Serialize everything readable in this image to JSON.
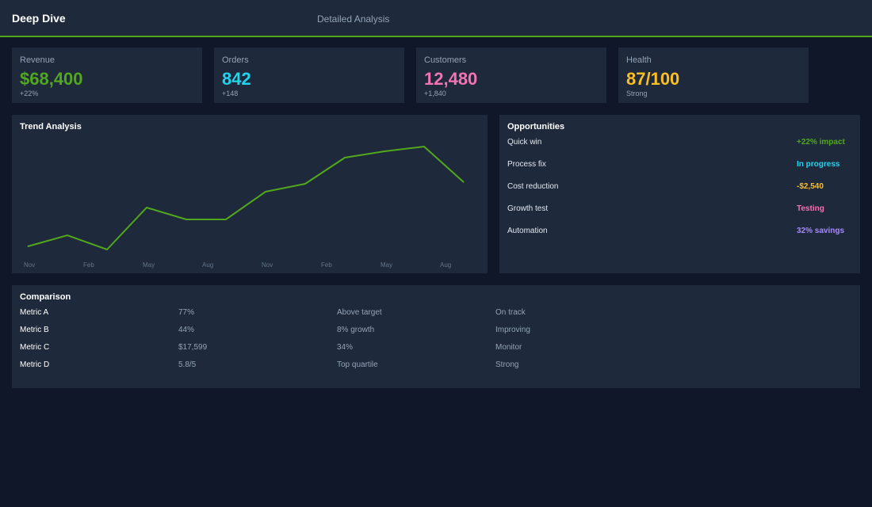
{
  "header": {
    "title": "Deep Dive",
    "subtitle": "Detailed Analysis"
  },
  "colors": {
    "accent": "#52a81c",
    "cyan": "#22d3ee",
    "pink": "#f472b6",
    "yellow": "#fbbf24",
    "purple": "#a78bfa"
  },
  "kpis": [
    {
      "label": "Revenue",
      "value": "$68,400",
      "sub": "+22%",
      "color": "#52a81c"
    },
    {
      "label": "Orders",
      "value": "842",
      "sub": "+148",
      "color": "#22d3ee"
    },
    {
      "label": "Customers",
      "value": "12,480",
      "sub": "+1,840",
      "color": "#f472b6"
    },
    {
      "label": "Health",
      "value": "87/100",
      "sub": "Strong",
      "color": "#fbbf24"
    }
  ],
  "trend": {
    "title": "Trend Analysis"
  },
  "chart_data": {
    "type": "line",
    "values": [
      19,
      33,
      15,
      68,
      53,
      53,
      88,
      98,
      131,
      139,
      145,
      100
    ],
    "x_tick_labels": [
      "Nov",
      "Feb",
      "May",
      "Aug",
      "Nov",
      "Feb",
      "May",
      "Aug"
    ],
    "ylim": [
      0,
      160
    ],
    "grid": false,
    "color": "#52a81c"
  },
  "opportunities": {
    "title": "Opportunities",
    "items": [
      {
        "name": "Quick win",
        "value": "+22% impact",
        "color": "#52a81c"
      },
      {
        "name": "Process fix",
        "value": "In progress",
        "color": "#22d3ee"
      },
      {
        "name": "Cost reduction",
        "value": "-$2,540",
        "color": "#fbbf24"
      },
      {
        "name": "Growth test",
        "value": "Testing",
        "color": "#f472b6"
      },
      {
        "name": "Automation",
        "value": "32% savings",
        "color": "#a78bfa"
      }
    ]
  },
  "comparison": {
    "title": "Comparison",
    "rows": [
      {
        "metric": "Metric A",
        "value": "77%",
        "note": "Above target",
        "status": "On track"
      },
      {
        "metric": "Metric B",
        "value": "44%",
        "note": "8% growth",
        "status": "Improving"
      },
      {
        "metric": "Metric C",
        "value": "$17,599",
        "note": "34%",
        "status": "Monitor"
      },
      {
        "metric": "Metric D",
        "value": "5.8/5",
        "note": "Top quartile",
        "status": "Strong"
      }
    ]
  }
}
